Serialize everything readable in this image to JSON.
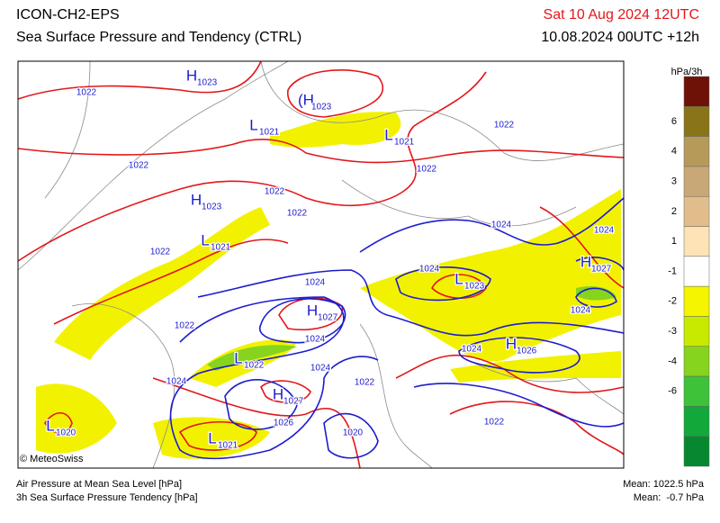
{
  "header": {
    "title": "ICON-CH2-EPS",
    "subtitle": "Sea Surface Pressure and Tendency (CTRL)",
    "valid": "Sat 10 Aug 2024 12UTC",
    "run": "10.08.2024 00UTC +12h"
  },
  "legend": {
    "unit": "hPa/3h",
    "colors": [
      "#6e1208",
      "#8a7418",
      "#b59a5a",
      "#c9a877",
      "#e2bd8c",
      "#fde3b5",
      "#ffffff",
      "#f5f500",
      "#c8ea00",
      "#86d41e",
      "#3ec23a",
      "#12a83a",
      "#07882e"
    ],
    "ticks": [
      6,
      4,
      3,
      2,
      1,
      -1,
      -2,
      -3,
      -4,
      -6
    ]
  },
  "map": {
    "labels": [
      {
        "value": 1022
      },
      {
        "symbol": "H",
        "value": 1023
      },
      {
        "symbol": "(H",
        "value": 1023
      },
      {
        "symbol": "L",
        "value": 1021
      },
      {
        "symbol": "L",
        "value": 1021
      },
      {
        "value": 1022
      },
      {
        "value": 1022
      },
      {
        "value": 1022
      },
      {
        "value": 1022
      },
      {
        "symbol": "H",
        "value": 1023
      },
      {
        "value": 1022
      },
      {
        "value": 1024
      },
      {
        "value": 1024
      },
      {
        "symbol": "L",
        "value": 1021
      },
      {
        "value": 1022
      },
      {
        "symbol": "H",
        "value": 1027
      },
      {
        "value": 1024
      },
      {
        "symbol": "L",
        "value": 1023
      },
      {
        "value": 1024
      },
      {
        "symbol": "H",
        "value": 1027
      },
      {
        "value": 1022
      },
      {
        "value": 1024
      },
      {
        "value": 1024
      },
      {
        "value": 1024
      },
      {
        "symbol": "H",
        "value": 1026
      },
      {
        "symbol": "L",
        "value": 1022
      },
      {
        "value": 1024
      },
      {
        "value": 1024
      },
      {
        "value": 1022
      },
      {
        "symbol": "H",
        "value": 1027
      },
      {
        "value": 1026
      },
      {
        "value": 1022
      },
      {
        "symbol": "L",
        "value": 1020
      },
      {
        "value": 1020
      },
      {
        "symbol": "L",
        "value": 1021
      }
    ]
  },
  "footer": {
    "copyright": "© MeteoSwiss",
    "line1": "Air Pressure at Mean Sea Level [hPa]",
    "line2": "3h Sea Surface Pressure Tendency [hPa]",
    "mean1": "Mean: 1022.5 hPa",
    "mean2": "Mean:  -0.7 hPa"
  }
}
